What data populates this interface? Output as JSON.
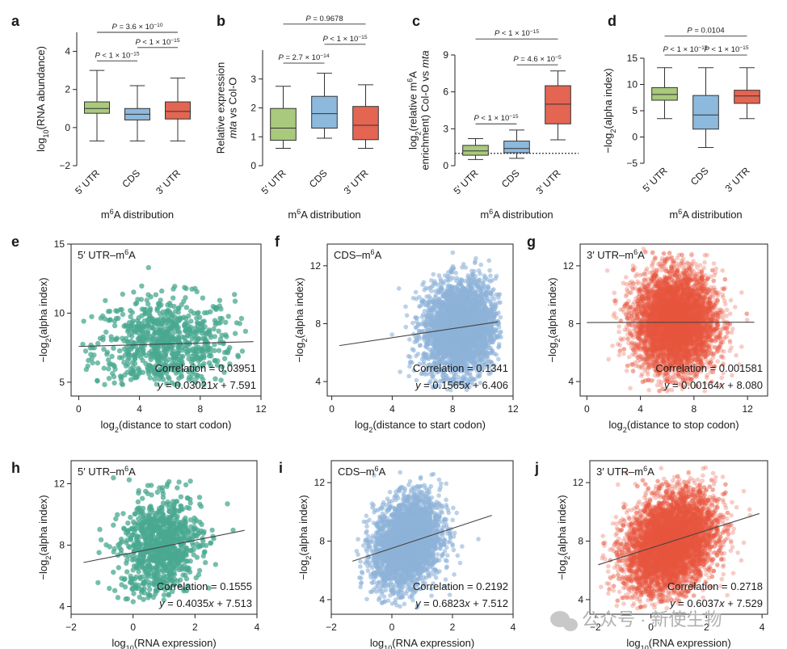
{
  "colors": {
    "green_box": "#a9c97c",
    "blue_box": "#8db9dd",
    "red_box": "#e36552",
    "teal_points": "#4aa890",
    "lightblue_points": "#8eb3d8",
    "red_points": "#e8553f"
  },
  "watermark": "公众号 · 新使生物",
  "chart_data": [
    {
      "panel": "a",
      "type": "box",
      "ylabel": "log10(RNA abundance)",
      "xlabel": "m6A distribution",
      "ylim": [
        -2,
        5
      ],
      "yticks": [
        -2,
        0,
        2,
        4
      ],
      "categories": [
        "5′ UTR",
        "CDS",
        "3′ UTR"
      ],
      "boxes": [
        {
          "whislo": -0.7,
          "q1": 0.75,
          "med": 1.0,
          "q3": 1.35,
          "whishi": 3.0,
          "color": "#a9c97c"
        },
        {
          "whislo": -0.7,
          "q1": 0.4,
          "med": 0.7,
          "q3": 1.0,
          "whishi": 2.2,
          "color": "#8db9dd"
        },
        {
          "whislo": -0.7,
          "q1": 0.45,
          "med": 0.85,
          "q3": 1.35,
          "whishi": 2.6,
          "color": "#e36552"
        }
      ],
      "comparisons": [
        {
          "from": 0,
          "to": 1,
          "y": 3.5,
          "label": "P < 1 × 10⁻¹⁵"
        },
        {
          "from": 1,
          "to": 2,
          "y": 4.2,
          "label": "P < 1 × 10⁻¹⁵"
        },
        {
          "from": 0,
          "to": 2,
          "y": 5.0,
          "label": "P = 3.6 × 10⁻¹⁰"
        }
      ]
    },
    {
      "panel": "b",
      "type": "box",
      "ylabel_lines": [
        "Relative expression",
        "mta vs Col-O"
      ],
      "xlabel": "m6A distribution",
      "ylim": [
        0,
        4
      ],
      "yticks": [
        0,
        1,
        2,
        3
      ],
      "categories": [
        "5′ UTR",
        "CDS",
        "3′ UTR"
      ],
      "boxes": [
        {
          "whislo": 0.6,
          "q1": 0.88,
          "med": 1.3,
          "q3": 1.98,
          "whishi": 2.75,
          "color": "#a9c97c"
        },
        {
          "whislo": 0.95,
          "q1": 1.3,
          "med": 1.8,
          "q3": 2.4,
          "whishi": 3.2,
          "color": "#8db9dd"
        },
        {
          "whislo": 0.6,
          "q1": 0.9,
          "med": 1.4,
          "q3": 2.05,
          "whishi": 2.8,
          "color": "#e36552"
        }
      ],
      "comparisons": [
        {
          "from": 0,
          "to": 1,
          "y": 3.55,
          "label": "P = 2.7 × 10⁻¹⁴"
        },
        {
          "from": 1,
          "to": 2,
          "y": 4.2,
          "label": "P < 1 × 10⁻¹⁵"
        },
        {
          "from": 0,
          "to": 2,
          "y": 4.9,
          "label": "P = 0.9678"
        }
      ]
    },
    {
      "panel": "c",
      "type": "box",
      "ylabel_lines": [
        "log2(relative m6A",
        "enrichment) Col-O vs mta"
      ],
      "xlabel": "m6A distribution",
      "ylim": [
        0,
        9
      ],
      "yticks": [
        0,
        3,
        6,
        9
      ],
      "categories": [
        "5′ UTR",
        "CDS",
        "3′ UTR"
      ],
      "reference_line": 1,
      "boxes": [
        {
          "whislo": 0.5,
          "q1": 0.85,
          "med": 1.2,
          "q3": 1.65,
          "whishi": 2.2,
          "color": "#a9c97c"
        },
        {
          "whislo": 0.6,
          "q1": 1.05,
          "med": 1.4,
          "q3": 2.0,
          "whishi": 2.9,
          "color": "#8db9dd"
        },
        {
          "whislo": 2.1,
          "q1": 3.4,
          "med": 5.0,
          "q3": 6.5,
          "whishi": 7.7,
          "color": "#e36552"
        }
      ],
      "comparisons": [
        {
          "from": 0,
          "to": 1,
          "y": 3.4,
          "label": "P < 1 × 10⁻¹⁵"
        },
        {
          "from": 1,
          "to": 2,
          "y": 8.2,
          "label": "P = 4.6 × 10⁻⁵"
        },
        {
          "from": 0,
          "to": 2,
          "y": 10.3,
          "label": "P < 1 × 10⁻¹⁵"
        }
      ]
    },
    {
      "panel": "d",
      "type": "box",
      "ylabel": "−log2(alpha index)",
      "xlabel": "m6A distribution",
      "ylim": [
        -5,
        15
      ],
      "yticks": [
        -5,
        0,
        5,
        10,
        15
      ],
      "categories": [
        "5′ UTR",
        "CDS",
        "3′ UTR"
      ],
      "boxes": [
        {
          "whislo": 3.5,
          "q1": 7.0,
          "med": 8.1,
          "q3": 9.4,
          "whishi": 13.2,
          "color": "#a9c97c"
        },
        {
          "whislo": -2.0,
          "q1": 1.5,
          "med": 4.2,
          "q3": 7.9,
          "whishi": 13.2,
          "color": "#8db9dd"
        },
        {
          "whislo": 3.5,
          "q1": 6.4,
          "med": 7.8,
          "q3": 8.9,
          "whishi": 13.2,
          "color": "#e36552"
        }
      ],
      "comparisons": [
        {
          "from": 0,
          "to": 1,
          "y": 15.6,
          "label": "P < 1 × 10⁻¹⁵"
        },
        {
          "from": 1,
          "to": 2,
          "y": 15.6,
          "label": "P < 1 × 10⁻¹⁵"
        },
        {
          "from": 0,
          "to": 2,
          "y": 19.2,
          "label": "P = 0.0104"
        }
      ]
    },
    {
      "panel": "e",
      "type": "scatter",
      "title": "5′ UTR–m6A",
      "xlabel": "log2(distance to start codon)",
      "ylabel": "−log2(alpha index)",
      "xlim": [
        -0.5,
        12
      ],
      "ylim": [
        4,
        15
      ],
      "xticks": [
        0,
        4,
        8,
        12
      ],
      "yticks": [
        5,
        10,
        15
      ],
      "color": "#4aa890",
      "alpha": 0.75,
      "r": 3.2,
      "correlation": "Correlation = 0.03951",
      "equation": "y = 0.03021x + 7.591",
      "slope": 0.03021,
      "intercept": 7.591,
      "fit_x": [
        0,
        11.5
      ],
      "points": {
        "n": 800,
        "x_mean": 5.6,
        "x_sd": 2.3,
        "y_mean": 7.76,
        "y_sd": 1.7,
        "x_min": 0,
        "x_max": 11,
        "y_min": 4.8,
        "y_max": 14
      }
    },
    {
      "panel": "f",
      "type": "scatter",
      "title": "CDS–m6A",
      "xlabel": "log2(distance to start codon)",
      "ylabel": "−log2(alpha index)",
      "xlim": [
        -0.3,
        12
      ],
      "ylim": [
        3,
        13.5
      ],
      "xticks": [
        0,
        4,
        8,
        12
      ],
      "yticks": [
        4,
        8,
        12
      ],
      "color": "#8eb3d8",
      "alpha": 0.6,
      "r": 2.8,
      "correlation": "Correlation = 0.1341",
      "equation": "y = 0.1565x + 6.406",
      "slope": 0.1565,
      "intercept": 6.406,
      "fit_x": [
        0.5,
        11
      ],
      "points": {
        "n": 3200,
        "x_mean": 8.5,
        "x_sd": 1.2,
        "y_mean": 7.7,
        "y_sd": 1.6,
        "x_min": 1,
        "x_max": 11.2,
        "y_min": 3.3,
        "y_max": 13
      }
    },
    {
      "panel": "g",
      "type": "scatter",
      "title": "3′ UTR–m6A",
      "xlabel": "log2(distance to stop codon)",
      "ylabel": "−log2(alpha index)",
      "xlim": [
        -0.5,
        13.5
      ],
      "ylim": [
        3,
        13.5
      ],
      "xticks": [
        0,
        4,
        8,
        12
      ],
      "yticks": [
        4,
        8,
        12
      ],
      "color": "#e8553f",
      "alpha": 0.3,
      "r": 2.8,
      "correlation": "Correlation = 0.001581",
      "equation": "y = 0.00164x + 8.080",
      "slope": 0.00164,
      "intercept": 8.08,
      "fit_x": [
        0,
        12.5
      ],
      "points": {
        "n": 6000,
        "x_mean": 6.6,
        "x_sd": 1.5,
        "y_mean": 8.1,
        "y_sd": 1.7,
        "x_min": 0,
        "x_max": 12.8,
        "y_min": 3.3,
        "y_max": 13.2
      }
    },
    {
      "panel": "h",
      "type": "scatter",
      "title": "5′ UTR–m6A",
      "xlabel": "log10(RNA expression)",
      "ylabel": "−log2(alpha index)",
      "xlim": [
        -2,
        4
      ],
      "ylim": [
        3.5,
        13.5
      ],
      "xticks": [
        -2,
        0,
        2,
        4
      ],
      "yticks": [
        4,
        8,
        12
      ],
      "color": "#4aa890",
      "alpha": 0.75,
      "r": 3.2,
      "correlation": "Correlation = 0.1555",
      "equation": "y = 0.4035x + 7.513",
      "slope": 0.4035,
      "intercept": 7.513,
      "fit_x": [
        -1.6,
        3.6
      ],
      "points": {
        "n": 900,
        "x_mean": 0.9,
        "x_sd": 0.65,
        "y_mean": 7.9,
        "y_sd": 1.6,
        "x_min": -1.6,
        "x_max": 3.4,
        "y_min": 4.3,
        "y_max": 13
      }
    },
    {
      "panel": "i",
      "type": "scatter",
      "title": "CDS–m6A",
      "xlabel": "log10(RNA expression)",
      "ylabel": "−log2(alpha index)",
      "xlim": [
        -2,
        4
      ],
      "ylim": [
        3,
        13.5
      ],
      "xticks": [
        -2,
        0,
        2,
        4
      ],
      "yticks": [
        4,
        8,
        12
      ],
      "color": "#8eb3d8",
      "alpha": 0.6,
      "r": 2.8,
      "correlation": "Correlation = 0.2192",
      "equation": "y = 0.6823x + 7.512",
      "slope": 0.6823,
      "intercept": 7.512,
      "fit_x": [
        -1.3,
        3.3
      ],
      "points": {
        "n": 3000,
        "x_mean": 0.5,
        "x_sd": 0.55,
        "y_mean": 7.9,
        "y_sd": 1.5,
        "x_min": -1.2,
        "x_max": 3.2,
        "y_min": 3.4,
        "y_max": 13
      }
    },
    {
      "panel": "j",
      "type": "scatter",
      "title": "3′ UTR–m6A",
      "xlabel": "log10(RNA expression)",
      "ylabel": "−log2(alpha index)",
      "xlim": [
        -2.2,
        4.2
      ],
      "ylim": [
        3,
        13.5
      ],
      "xticks": [
        -2,
        0,
        2,
        4
      ],
      "yticks": [
        4,
        8,
        12
      ],
      "color": "#e8553f",
      "alpha": 0.3,
      "r": 2.8,
      "correlation": "Correlation = 0.2718",
      "equation": "y = 0.6037x + 7.529",
      "slope": 0.6037,
      "intercept": 7.529,
      "fit_x": [
        -1.9,
        3.9
      ],
      "points": {
        "n": 6500,
        "x_mean": 0.7,
        "x_sd": 0.8,
        "y_mean": 7.9,
        "y_sd": 1.6,
        "x_min": -1.8,
        "x_max": 3.8,
        "y_min": 3.4,
        "y_max": 13.2
      }
    }
  ]
}
